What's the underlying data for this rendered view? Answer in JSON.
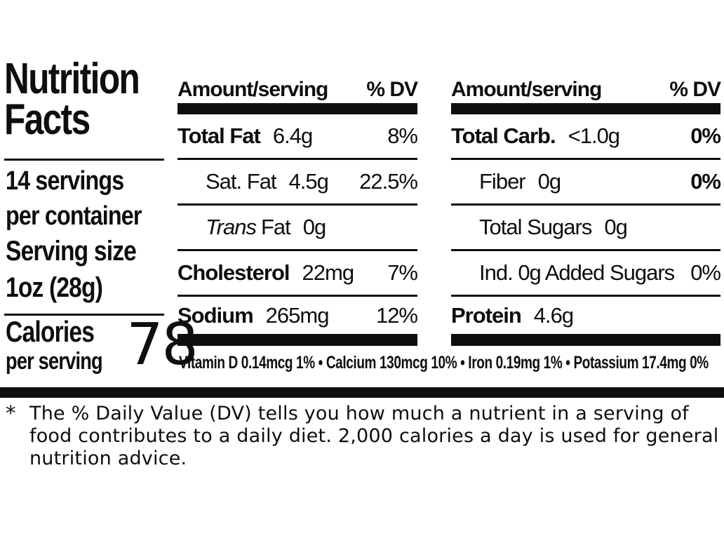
{
  "label": {
    "title": {
      "line1": "Nutrition",
      "line2": "Facts"
    },
    "servings": {
      "line1": "14 servings",
      "line2": "per container"
    },
    "serving_size": {
      "label": "Serving size",
      "value": "1oz (28g)"
    },
    "calories": {
      "label_line1": "Calories",
      "label_line2": "per serving",
      "value": "78"
    },
    "columns": {
      "header_amount": "Amount/serving",
      "header_dv": "% DV"
    },
    "mid_rows": [
      {
        "name": "Total Fat",
        "amount": "6.4g",
        "dv": "8%"
      },
      {
        "name": "Sat. Fat",
        "amount": "4.5g",
        "dv": "22.5%"
      },
      {
        "name_italic": "Trans",
        "name": "Fat",
        "amount": "0g",
        "dv": ""
      },
      {
        "name": "Cholesterol",
        "amount": "22mg",
        "dv": "7%"
      },
      {
        "name": "Sodium",
        "amount": "265mg",
        "dv": "12%"
      }
    ],
    "right_rows": [
      {
        "name": "Total Carb.",
        "amount": "<1.0g",
        "dv": "0%"
      },
      {
        "name": "Fiber",
        "amount": "0g",
        "dv": "0%"
      },
      {
        "name": "Total Sugars",
        "amount": "0g",
        "dv": ""
      },
      {
        "name": "Ind. 0g Added Sugars",
        "amount": "",
        "dv": "0%"
      },
      {
        "name": "Protein",
        "amount": "4.6g",
        "dv": ""
      }
    ],
    "micronutrients": "Vitamin D 0.14mcg 1% • Calcium 130mcg 10% • Iron 0.19mg 1% • Potassium 17.4mg 0%",
    "footnote": {
      "marker": "*",
      "text": "The % Daily Value (DV) tells you how much a nutrient in a serving of food contributes to a daily diet. 2,000 calories a day is used for general nutrition advice."
    },
    "colors": {
      "ink": "#0e0e0e",
      "background": "#ffffff"
    }
  }
}
